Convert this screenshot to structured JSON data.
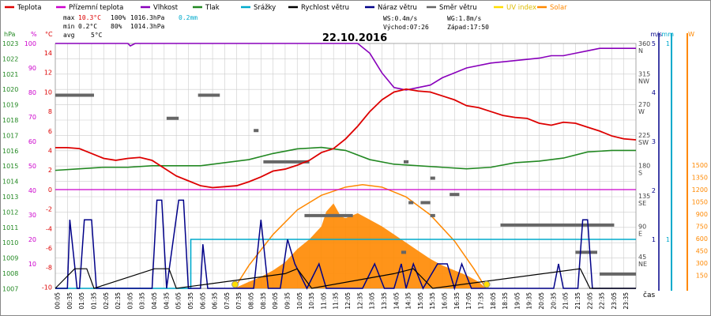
{
  "colors": {
    "temperature": "#dd0000",
    "feels_like": "#cc00cc",
    "humidity": "#8800bb",
    "pressure": "#228822",
    "precipitation": "#00aacc",
    "wind_speed": "#000000",
    "wind_gust": "#000088",
    "wind_direction": "#666666",
    "uv_index": "#ffdd00",
    "solar": "#ff8800",
    "grid": "#cccccc",
    "axis_percent": "#cc00cc",
    "axis_hpa": "#228822",
    "axis_temp": "#dd0000",
    "axis_ms": "#000088",
    "axis_mm": "#00aacc",
    "axis_w": "#ff8800"
  },
  "legend": [
    {
      "label": "Teplota",
      "color_key": "temperature"
    },
    {
      "label": "Přízemní teplota",
      "color_key": "feels_like"
    },
    {
      "label": "Vlhkost",
      "color_key": "humidity"
    },
    {
      "label": "Tlak",
      "color_key": "pressure"
    },
    {
      "label": "Srážky",
      "color_key": "precipitation"
    },
    {
      "label": "Rychlost větru",
      "color_key": "wind_speed"
    },
    {
      "label": "Náraz větru",
      "color_key": "wind_gust"
    },
    {
      "label": "Směr větru",
      "color_key": "wind_direction"
    },
    {
      "label": "UV index",
      "color_key": "uv_index"
    },
    {
      "label": "Solar",
      "color_key": "solar"
    }
  ],
  "stats": {
    "max": {
      "label": "max",
      "temp": "10.3°C",
      "hum": "100%",
      "press": "1016.3hPa",
      "rain": "0.2mm"
    },
    "min": {
      "label": "min",
      "temp": "0.2°C",
      "hum": "80%",
      "press": "1014.3hPa"
    },
    "avg": {
      "label": "avg",
      "temp": "5°C"
    }
  },
  "info": {
    "ws": "WS:0.4m/s",
    "wg": "WG:1.8m/s",
    "sunrise": "Východ:07:26",
    "sunset": "Západ:17:50"
  },
  "chart_data": {
    "type": "line",
    "title": "22.10.2016",
    "xlabel": "čas",
    "x_ticks": [
      "00:05",
      "00:35",
      "01:05",
      "01:35",
      "02:05",
      "02:35",
      "03:05",
      "03:35",
      "04:05",
      "04:35",
      "05:05",
      "05:35",
      "06:05",
      "06:35",
      "07:05",
      "07:35",
      "08:05",
      "08:35",
      "09:05",
      "09:35",
      "10:05",
      "10:35",
      "11:05",
      "11:35",
      "12:05",
      "12:35",
      "13:05",
      "13:35",
      "14:05",
      "14:35",
      "15:05",
      "15:35",
      "16:05",
      "16:35",
      "17:05",
      "17:35",
      "18:05",
      "18:35",
      "19:05",
      "19:35",
      "20:05",
      "20:35",
      "21:05",
      "21:35",
      "22:05",
      "22:35",
      "23:05",
      "23:35"
    ],
    "axes": {
      "hpa": {
        "label": "hPa",
        "ticks": [
          "1023",
          "1022",
          "1021",
          "1020",
          "1019",
          "1018",
          "1017",
          "1016",
          "1015",
          "1014",
          "1013",
          "1012",
          "1011",
          "1010",
          "1009",
          "1008",
          "1007"
        ],
        "range": [
          1007,
          1023
        ]
      },
      "percent": {
        "label": "%",
        "ticks": [
          "100",
          "90",
          "80",
          "70",
          "60",
          "50",
          "40",
          "30",
          "20",
          "10"
        ],
        "range": [
          0,
          100
        ]
      },
      "temp": {
        "label": "°C",
        "ticks": [
          "14",
          "12",
          "10",
          "8",
          "6",
          "4",
          "2",
          "0",
          "-2",
          "-4",
          "-6",
          "-8",
          "-10"
        ],
        "range": [
          -10,
          16
        ]
      },
      "direction": {
        "ticks": [
          "360",
          "315",
          "270",
          "225",
          "180",
          "135",
          "90",
          "45"
        ],
        "compass": [
          "N",
          "NW",
          "W",
          "SW",
          "S",
          "SE",
          "E",
          "NE"
        ]
      },
      "ms": {
        "label": "m/s",
        "ticks": [
          "5",
          "4",
          "3",
          "2",
          "1"
        ],
        "range": [
          0,
          5
        ]
      },
      "mm": {
        "label": "mm",
        "ticks": [
          "1"
        ],
        "range": [
          0,
          2
        ]
      },
      "w": {
        "label": "W",
        "ticks": [
          "1500",
          "1350",
          "1200",
          "1050",
          "900",
          "750",
          "600",
          "450",
          "300",
          "150"
        ],
        "range": [
          0,
          1500
        ]
      }
    },
    "series": [
      {
        "name": "Teplota",
        "unit": "°C",
        "color_key": "temperature",
        "points": [
          [
            0,
            4.3
          ],
          [
            0.5,
            4.3
          ],
          [
            1,
            4.2
          ],
          [
            1.5,
            3.7
          ],
          [
            2,
            3.2
          ],
          [
            2.5,
            3.0
          ],
          [
            3,
            3.2
          ],
          [
            3.5,
            3.3
          ],
          [
            4,
            3.0
          ],
          [
            4.5,
            2.2
          ],
          [
            5,
            1.4
          ],
          [
            5.5,
            0.9
          ],
          [
            6,
            0.4
          ],
          [
            6.5,
            0.2
          ],
          [
            7,
            0.3
          ],
          [
            7.5,
            0.4
          ],
          [
            8,
            0.8
          ],
          [
            8.5,
            1.3
          ],
          [
            9,
            1.9
          ],
          [
            9.5,
            2.1
          ],
          [
            10,
            2.5
          ],
          [
            10.5,
            3.0
          ],
          [
            11,
            3.8
          ],
          [
            11.5,
            4.2
          ],
          [
            12,
            5.2
          ],
          [
            12.5,
            6.5
          ],
          [
            13,
            8.0
          ],
          [
            13.5,
            9.2
          ],
          [
            14,
            10.0
          ],
          [
            14.5,
            10.3
          ],
          [
            15,
            10.1
          ],
          [
            15.5,
            10.0
          ],
          [
            16,
            9.6
          ],
          [
            16.5,
            9.2
          ],
          [
            17,
            8.6
          ],
          [
            17.5,
            8.4
          ],
          [
            18,
            8.0
          ],
          [
            18.5,
            7.6
          ],
          [
            19,
            7.4
          ],
          [
            19.5,
            7.3
          ],
          [
            20,
            6.8
          ],
          [
            20.5,
            6.6
          ],
          [
            21,
            6.9
          ],
          [
            21.5,
            6.8
          ],
          [
            22,
            6.4
          ],
          [
            22.5,
            6.0
          ],
          [
            23,
            5.5
          ],
          [
            23.5,
            5.2
          ],
          [
            24,
            5.1
          ]
        ]
      },
      {
        "name": "Vlhkost",
        "unit": "%",
        "color_key": "humidity",
        "points": [
          [
            0,
            100
          ],
          [
            3,
            100
          ],
          [
            3.1,
            99
          ],
          [
            3.3,
            100
          ],
          [
            12.5,
            100
          ],
          [
            13,
            96
          ],
          [
            13.5,
            88
          ],
          [
            14,
            82
          ],
          [
            14.5,
            81
          ],
          [
            15,
            82
          ],
          [
            15.5,
            83
          ],
          [
            16,
            86
          ],
          [
            16.5,
            88
          ],
          [
            17,
            90
          ],
          [
            18,
            92
          ],
          [
            19,
            93
          ],
          [
            20,
            94
          ],
          [
            20.5,
            95
          ],
          [
            21,
            95
          ],
          [
            21.5,
            96
          ],
          [
            22,
            97
          ],
          [
            22.5,
            98
          ],
          [
            23,
            98
          ],
          [
            24,
            98
          ]
        ]
      },
      {
        "name": "Tlak",
        "unit": "hPa",
        "color_key": "pressure",
        "points": [
          [
            0,
            1014.7
          ],
          [
            1,
            1014.8
          ],
          [
            2,
            1014.9
          ],
          [
            3,
            1014.9
          ],
          [
            4,
            1015.0
          ],
          [
            5,
            1015.0
          ],
          [
            6,
            1015.0
          ],
          [
            7,
            1015.2
          ],
          [
            8,
            1015.4
          ],
          [
            9,
            1015.8
          ],
          [
            10,
            1016.1
          ],
          [
            11,
            1016.2
          ],
          [
            12,
            1016.0
          ],
          [
            13,
            1015.4
          ],
          [
            14,
            1015.1
          ],
          [
            15,
            1015.0
          ],
          [
            16,
            1014.9
          ],
          [
            17,
            1014.8
          ],
          [
            18,
            1014.9
          ],
          [
            19,
            1015.2
          ],
          [
            20,
            1015.3
          ],
          [
            21,
            1015.5
          ],
          [
            22,
            1015.9
          ],
          [
            23,
            1016.0
          ],
          [
            24,
            1016.0
          ]
        ]
      },
      {
        "name": "Srážky",
        "unit": "mm",
        "color_key": "precipitation",
        "points": [
          [
            0,
            0
          ],
          [
            5.6,
            0
          ],
          [
            5.6,
            1
          ],
          [
            24,
            1
          ]
        ]
      },
      {
        "name": "Náraz větru",
        "unit": "m/s",
        "color_key": "wind_gust",
        "points": [
          [
            0,
            0
          ],
          [
            0.5,
            0
          ],
          [
            0.6,
            1.4
          ],
          [
            0.9,
            0
          ],
          [
            1,
            0
          ],
          [
            1.2,
            1.4
          ],
          [
            1.5,
            1.4
          ],
          [
            1.7,
            0
          ],
          [
            4,
            0
          ],
          [
            4.2,
            1.8
          ],
          [
            4.4,
            1.8
          ],
          [
            4.6,
            0
          ],
          [
            5.1,
            1.8
          ],
          [
            5.3,
            1.8
          ],
          [
            5.5,
            0
          ],
          [
            6,
            0
          ],
          [
            6.1,
            0.9
          ],
          [
            6.3,
            0
          ],
          [
            8.2,
            0
          ],
          [
            8.5,
            1.4
          ],
          [
            8.8,
            0
          ],
          [
            9.3,
            0
          ],
          [
            9.6,
            1.0
          ],
          [
            9.9,
            0.5
          ],
          [
            10.4,
            0
          ],
          [
            10.9,
            0.5
          ],
          [
            11.2,
            0
          ],
          [
            12.7,
            0
          ],
          [
            13.2,
            0.5
          ],
          [
            13.6,
            0
          ],
          [
            14,
            0
          ],
          [
            14.3,
            0.5
          ],
          [
            14.5,
            0
          ],
          [
            14.8,
            0.5
          ],
          [
            15.2,
            0
          ],
          [
            15.8,
            0.5
          ],
          [
            16.2,
            0.5
          ],
          [
            16.5,
            0
          ],
          [
            16.8,
            0.5
          ],
          [
            17.2,
            0
          ],
          [
            20.6,
            0
          ],
          [
            20.8,
            0.5
          ],
          [
            21,
            0
          ],
          [
            21.6,
            0
          ],
          [
            21.8,
            1.4
          ],
          [
            22,
            1.4
          ],
          [
            22.2,
            0
          ],
          [
            24,
            0
          ]
        ]
      },
      {
        "name": "Rychlost větru",
        "unit": "m/s",
        "color_key": "wind_speed",
        "points": [
          [
            0,
            0
          ],
          [
            0.8,
            0.4
          ],
          [
            1.3,
            0.4
          ],
          [
            1.6,
            0
          ],
          [
            4.1,
            0.4
          ],
          [
            4.7,
            0.4
          ],
          [
            5,
            0
          ],
          [
            9.5,
            0.3
          ],
          [
            10,
            0.4
          ],
          [
            10.6,
            0
          ],
          [
            14,
            0.3
          ],
          [
            14.8,
            0.4
          ],
          [
            15.6,
            0
          ],
          [
            21.7,
            0.4
          ],
          [
            22.1,
            0
          ],
          [
            24,
            0
          ]
        ]
      },
      {
        "name": "Solar",
        "unit": "W",
        "color_key": "solar",
        "points": [
          [
            7.4,
            0
          ],
          [
            8,
            40
          ],
          [
            8.5,
            70
          ],
          [
            9,
            110
          ],
          [
            9.5,
            160
          ],
          [
            10,
            240
          ],
          [
            10.5,
            300
          ],
          [
            11,
            380
          ],
          [
            11.2,
            470
          ],
          [
            11.5,
            520
          ],
          [
            11.8,
            440
          ],
          [
            12,
            430
          ],
          [
            12.5,
            460
          ],
          [
            13,
            420
          ],
          [
            13.5,
            380
          ],
          [
            14,
            330
          ],
          [
            14.5,
            280
          ],
          [
            15,
            230
          ],
          [
            15.5,
            180
          ],
          [
            16,
            140
          ],
          [
            16.5,
            110
          ],
          [
            17,
            80
          ],
          [
            17.5,
            40
          ],
          [
            17.8,
            0
          ]
        ]
      },
      {
        "name": "Solar max",
        "unit": "W",
        "color_key": "solar",
        "points": [
          [
            7.4,
            0
          ],
          [
            8,
            140
          ],
          [
            9,
            330
          ],
          [
            10,
            480
          ],
          [
            11,
            570
          ],
          [
            12,
            620
          ],
          [
            12.7,
            635
          ],
          [
            13.5,
            620
          ],
          [
            14.5,
            560
          ],
          [
            15.5,
            450
          ],
          [
            16.5,
            290
          ],
          [
            17.3,
            120
          ],
          [
            17.8,
            0
          ]
        ]
      },
      {
        "name": "Směr větru",
        "unit": "°",
        "color_key": "wind_direction",
        "segments": [
          [
            0,
            1.6,
            284
          ],
          [
            4.6,
            5.1,
            250
          ],
          [
            5.9,
            6.8,
            284
          ],
          [
            8.2,
            8.4,
            232
          ],
          [
            8.6,
            10.5,
            186
          ],
          [
            10.3,
            12.3,
            107
          ],
          [
            14.4,
            14.6,
            186
          ],
          [
            14.6,
            14.8,
            126
          ],
          [
            14.3,
            14.5,
            53
          ],
          [
            15.1,
            15.5,
            126
          ],
          [
            15.5,
            15.7,
            107
          ],
          [
            15.5,
            15.7,
            162
          ],
          [
            16.3,
            16.7,
            138
          ],
          [
            18.4,
            23.1,
            93
          ],
          [
            21.5,
            22.4,
            53
          ],
          [
            22.5,
            24,
            21
          ]
        ]
      }
    ],
    "sun_markers": [
      7.43,
      17.83
    ]
  }
}
